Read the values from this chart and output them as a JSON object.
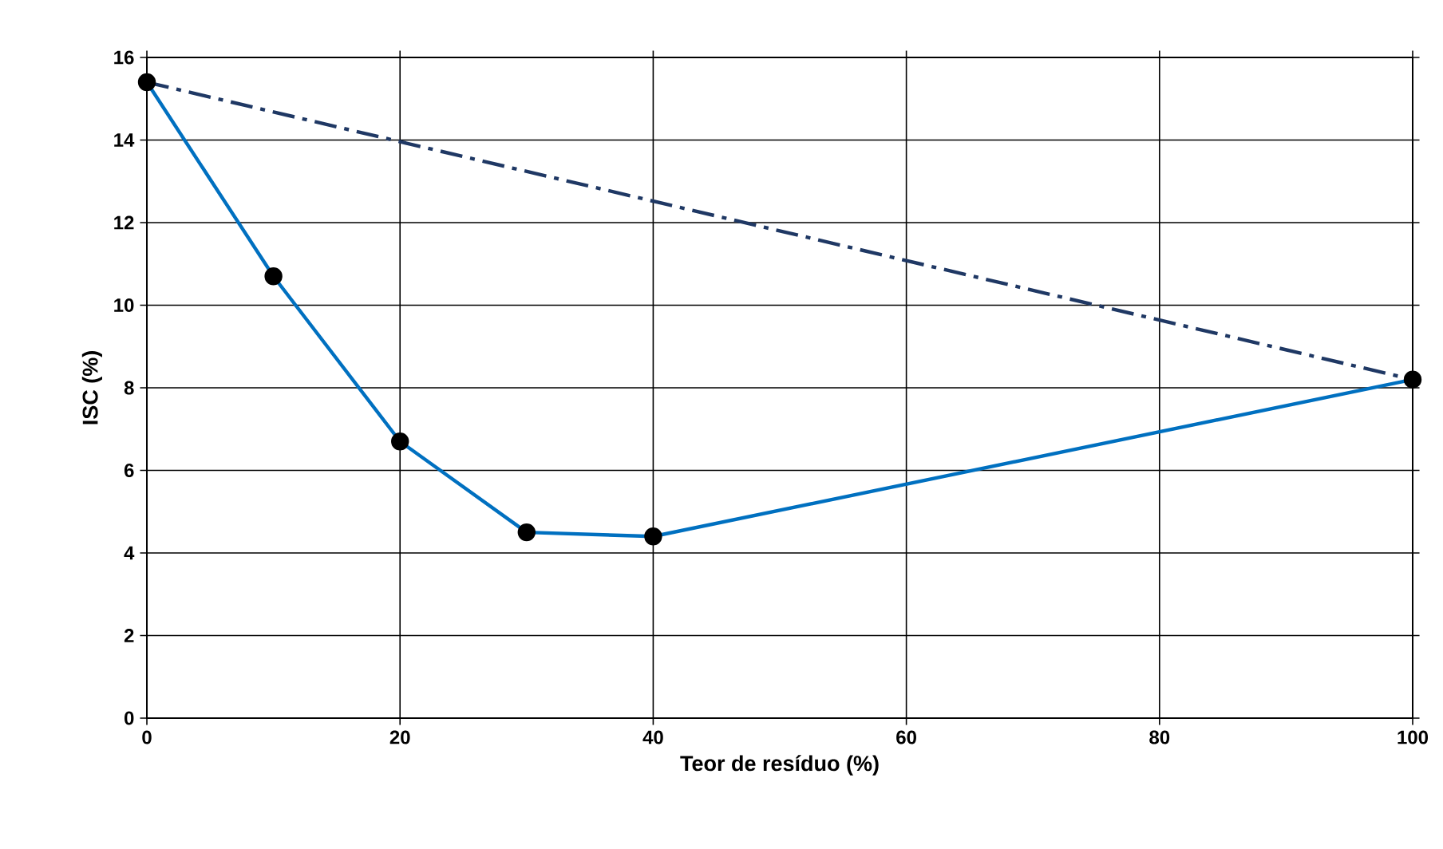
{
  "chart_data": {
    "type": "line",
    "xlabel": "Teor de resíduo (%)",
    "ylabel": "ISC (%)",
    "xlim": [
      0,
      100
    ],
    "ylim": [
      0,
      16
    ],
    "xticks": [
      0,
      20,
      40,
      60,
      80,
      100
    ],
    "yticks": [
      0,
      2,
      4,
      6,
      8,
      10,
      12,
      14,
      16
    ],
    "grid": true,
    "series": [
      {
        "color": "#0070c0",
        "x": [
          0,
          10,
          20,
          30,
          40,
          100
        ],
        "values": [
          15.4,
          10.7,
          6.7,
          4.5,
          4.4,
          8.2
        ],
        "marker": "circle",
        "line_style": "solid"
      },
      {
        "color": "#1f3864",
        "x": [
          0,
          100
        ],
        "values": [
          15.4,
          8.2
        ],
        "marker": "none",
        "line_style": "dashdot"
      }
    ]
  }
}
